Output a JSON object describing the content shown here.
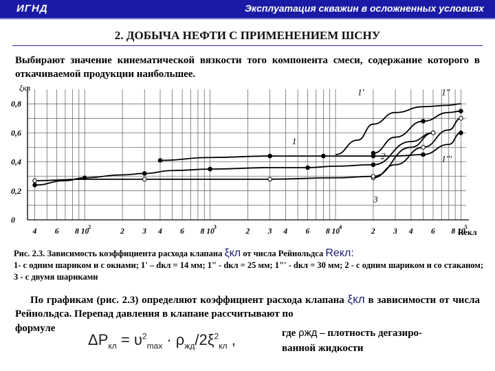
{
  "header": {
    "left": "ИГНД",
    "right": "Эксплуатация скважин в осложненных условиях",
    "bar_color": "#1a1aa6"
  },
  "title": "2. ДОБЫЧА НЕФТИ С ПРИМЕНЕНИЕМ ШСНУ",
  "intro": "Выбирают значение кинематической вязкости того компонента смеси, содержание которого в откачиваемой продукции наибольшее.",
  "chart_data": {
    "type": "line",
    "xscale": "log",
    "ylabel": "ξкл",
    "xlabel": "Reкл",
    "ylim": [
      0,
      0.9
    ],
    "yticks": [
      "0",
      "0,2",
      "0,4",
      "0,6",
      "0,8"
    ],
    "xtick_labels": [
      "4",
      "6",
      "8 10",
      "2",
      "3",
      "4",
      "6",
      "8 10",
      "2",
      "3",
      "4",
      "6",
      "8 10",
      "2",
      "3",
      "4",
      "6",
      "8 10",
      "2",
      "3",
      "4",
      "6",
      "8 10"
    ],
    "decade_exponents": [
      "2",
      "3",
      "4",
      "5"
    ],
    "series": [
      {
        "name": "1",
        "x": [
          4000,
          10000,
          30000,
          60000,
          80000,
          100000,
          200000,
          300000,
          500000,
          800000,
          1000000
        ],
        "y": [
          0.41,
          0.43,
          0.44,
          0.44,
          0.44,
          0.44,
          0.44,
          0.44,
          0.45,
          0.52,
          0.6
        ]
      },
      {
        "name": "1'",
        "x": [
          100000,
          150000,
          200000,
          300000,
          500000,
          800000,
          1000000
        ],
        "y": [
          0.45,
          0.55,
          0.66,
          0.74,
          0.78,
          0.79,
          0.8
        ]
      },
      {
        "name": "1''",
        "x": [
          200000,
          300000,
          500000,
          800000,
          1000000
        ],
        "y": [
          0.46,
          0.57,
          0.68,
          0.74,
          0.75
        ]
      },
      {
        "name": "1'''",
        "x": [
          200000,
          300000,
          500000,
          800000,
          1000000
        ],
        "y": [
          0.29,
          0.38,
          0.5,
          0.62,
          0.7
        ]
      },
      {
        "name": "2",
        "x": [
          400,
          700,
          1000,
          2000,
          3000,
          5000,
          10000,
          30000,
          60000,
          100000,
          200000,
          400000,
          600000
        ],
        "y": [
          0.24,
          0.27,
          0.29,
          0.31,
          0.32,
          0.34,
          0.35,
          0.36,
          0.36,
          0.37,
          0.38,
          0.54,
          0.6
        ]
      },
      {
        "name": "3",
        "x": [
          400,
          1000,
          3000,
          10000,
          30000,
          100000,
          200000,
          400000,
          600000
        ],
        "y": [
          0.27,
          0.28,
          0.28,
          0.28,
          0.28,
          0.29,
          0.3,
          0.5,
          0.6
        ]
      }
    ],
    "curve_labels": [
      "1",
      "1'",
      "1''",
      "1'''",
      "2",
      "3"
    ]
  },
  "caption": {
    "prefix": "Рис. 2.3. Зависимость коэффициента расхода клапана",
    "symbol": "ξкл",
    "mid": "от числа Рейнольдса",
    "symbol2": "Reкл:",
    "body": "1- с одним шариком и с окнами; 1' – dкл = 14 мм; 1\" - dкл = 25 мм; 1\"' - dкл = 30 мм; 2 - с одним шариком и со стаканом; 3 - с двумя шариками"
  },
  "para": {
    "part1": "По графикам (рис. 2.3) определяют коэффициент расхода клапана",
    "symbol": "ξкл",
    "part2": "в зависимости от числа Рейнольдса. Перепад давления в клапане рассчитывают по"
  },
  "formula_label": "формуле",
  "formula_text": "ΔP",
  "note": {
    "pre": "где",
    "rho": "ρжд",
    "text": "– плотность дегазиро-",
    "line2": "ванной жидкости"
  }
}
